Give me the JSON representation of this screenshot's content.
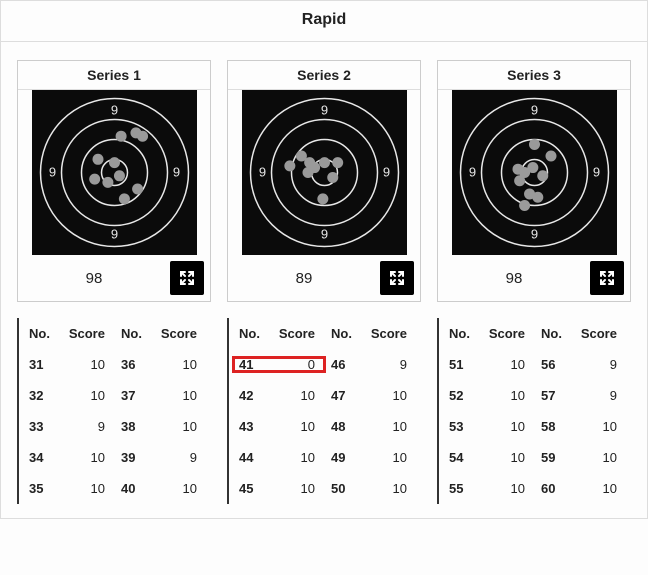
{
  "title": "Rapid",
  "headers": {
    "no": "No.",
    "score": "Score"
  },
  "target": {
    "bg": "#0b0b0b",
    "ring_stroke": "#e8e8e8",
    "shot_fill": "#9a9a9a",
    "label_fill": "#e8e8e8",
    "ring_label": "9",
    "size": 165,
    "rings": [
      74,
      53,
      33,
      13
    ],
    "label_offset": 62
  },
  "expand_icon_name": "expand-icon",
  "series": [
    {
      "label": "Series 1",
      "total": "98",
      "shots": [
        {
          "x": 0.54,
          "y": 0.28
        },
        {
          "x": 0.63,
          "y": 0.26
        },
        {
          "x": 0.67,
          "y": 0.28
        },
        {
          "x": 0.4,
          "y": 0.42
        },
        {
          "x": 0.5,
          "y": 0.44
        },
        {
          "x": 0.38,
          "y": 0.54
        },
        {
          "x": 0.46,
          "y": 0.56
        },
        {
          "x": 0.53,
          "y": 0.52
        },
        {
          "x": 0.64,
          "y": 0.6
        },
        {
          "x": 0.56,
          "y": 0.66
        }
      ],
      "rows": [
        {
          "a_no": "31",
          "a_score": "10",
          "b_no": "36",
          "b_score": "10",
          "hl": false
        },
        {
          "a_no": "32",
          "a_score": "10",
          "b_no": "37",
          "b_score": "10",
          "hl": false
        },
        {
          "a_no": "33",
          "a_score": "9",
          "b_no": "38",
          "b_score": "10",
          "hl": false
        },
        {
          "a_no": "34",
          "a_score": "10",
          "b_no": "39",
          "b_score": "9",
          "hl": false
        },
        {
          "a_no": "35",
          "a_score": "10",
          "b_no": "40",
          "b_score": "10",
          "hl": false
        }
      ]
    },
    {
      "label": "Series 2",
      "total": "89",
      "shots": [
        {
          "x": 0.29,
          "y": 0.46
        },
        {
          "x": 0.36,
          "y": 0.4
        },
        {
          "x": 0.41,
          "y": 0.44
        },
        {
          "x": 0.44,
          "y": 0.47
        },
        {
          "x": 0.4,
          "y": 0.5
        },
        {
          "x": 0.5,
          "y": 0.44
        },
        {
          "x": 0.58,
          "y": 0.44
        },
        {
          "x": 0.55,
          "y": 0.53
        },
        {
          "x": 0.49,
          "y": 0.66
        }
      ],
      "rows": [
        {
          "a_no": "41",
          "a_score": "0",
          "b_no": "46",
          "b_score": "9",
          "hl": true
        },
        {
          "a_no": "42",
          "a_score": "10",
          "b_no": "47",
          "b_score": "10",
          "hl": false
        },
        {
          "a_no": "43",
          "a_score": "10",
          "b_no": "48",
          "b_score": "10",
          "hl": false
        },
        {
          "a_no": "44",
          "a_score": "10",
          "b_no": "49",
          "b_score": "10",
          "hl": false
        },
        {
          "a_no": "45",
          "a_score": "10",
          "b_no": "50",
          "b_score": "10",
          "hl": false
        }
      ]
    },
    {
      "label": "Series 3",
      "total": "98",
      "shots": [
        {
          "x": 0.5,
          "y": 0.33
        },
        {
          "x": 0.6,
          "y": 0.4
        },
        {
          "x": 0.4,
          "y": 0.48
        },
        {
          "x": 0.44,
          "y": 0.5
        },
        {
          "x": 0.41,
          "y": 0.55
        },
        {
          "x": 0.49,
          "y": 0.47
        },
        {
          "x": 0.55,
          "y": 0.52
        },
        {
          "x": 0.47,
          "y": 0.63
        },
        {
          "x": 0.52,
          "y": 0.65
        },
        {
          "x": 0.44,
          "y": 0.7
        }
      ],
      "rows": [
        {
          "a_no": "51",
          "a_score": "10",
          "b_no": "56",
          "b_score": "9",
          "hl": false
        },
        {
          "a_no": "52",
          "a_score": "10",
          "b_no": "57",
          "b_score": "9",
          "hl": false
        },
        {
          "a_no": "53",
          "a_score": "10",
          "b_no": "58",
          "b_score": "10",
          "hl": false
        },
        {
          "a_no": "54",
          "a_score": "10",
          "b_no": "59",
          "b_score": "10",
          "hl": false
        },
        {
          "a_no": "55",
          "a_score": "10",
          "b_no": "60",
          "b_score": "10",
          "hl": false
        }
      ]
    }
  ]
}
